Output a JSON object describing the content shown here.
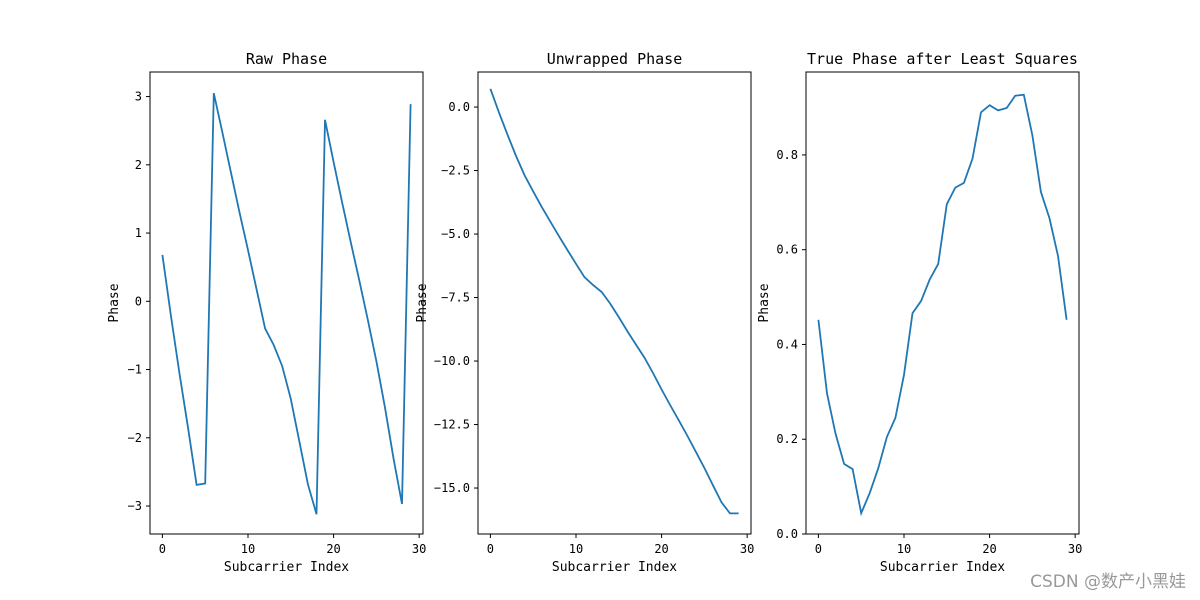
{
  "colors": {
    "line": "#1f77b4",
    "axes": "#000000",
    "watermark": "#999999"
  },
  "watermark": "CSDN @数产小黑娃",
  "chart_data": [
    {
      "type": "line",
      "title": "Raw Phase",
      "xlabel": "Subcarrier Index",
      "ylabel": "Phase",
      "xlim": [
        -1.45,
        30.45
      ],
      "ylim": [
        -3.41,
        3.36
      ],
      "xticks": [
        0,
        10,
        20,
        30
      ],
      "xtick_labels": [
        "0",
        "10",
        "20",
        "30"
      ],
      "yticks": [
        -3,
        -2,
        -1,
        0,
        1,
        2,
        3
      ],
      "ytick_labels": [
        "−3",
        "−2",
        "−1",
        "0",
        "1",
        "2",
        "3"
      ],
      "x": [
        0,
        1,
        2,
        3,
        4,
        5,
        6,
        7,
        8,
        9,
        10,
        11,
        12,
        13,
        14,
        15,
        16,
        17,
        18,
        19,
        20,
        21,
        22,
        23,
        24,
        25,
        26,
        27,
        28,
        29
      ],
      "y": [
        0.68,
        -0.22,
        -1.06,
        -1.86,
        -2.69,
        -2.67,
        3.05,
        2.48,
        1.89,
        1.31,
        0.75,
        0.18,
        -0.4,
        -0.64,
        -0.95,
        -1.43,
        -2.05,
        -2.68,
        -3.12,
        2.66,
        2.04,
        1.45,
        0.87,
        0.31,
        -0.27,
        -0.88,
        -1.55,
        -2.3,
        -2.97,
        2.89
      ]
    },
    {
      "type": "line",
      "title": "Unwrapped Phase",
      "xlabel": "Subcarrier Index",
      "ylabel": "Phase",
      "xlim": [
        -1.45,
        30.45
      ],
      "ylim": [
        -16.81,
        1.38
      ],
      "xticks": [
        0,
        10,
        20,
        30
      ],
      "xtick_labels": [
        "0",
        "10",
        "20",
        "30"
      ],
      "yticks": [
        0.0,
        -2.5,
        -5.0,
        -7.5,
        -10.0,
        -12.5,
        -15.0
      ],
      "ytick_labels": [
        "0.0",
        "−2.5",
        "−5.0",
        "−7.5",
        "−10.0",
        "−12.5",
        "−15.0"
      ],
      "x": [
        0,
        1,
        2,
        3,
        4,
        5,
        6,
        7,
        8,
        9,
        10,
        11,
        12,
        13,
        14,
        15,
        16,
        17,
        18,
        19,
        20,
        21,
        22,
        23,
        24,
        25,
        26,
        27,
        28,
        29
      ],
      "y": [
        0.72,
        -0.22,
        -1.09,
        -1.93,
        -2.69,
        -3.32,
        -3.94,
        -4.51,
        -5.08,
        -5.63,
        -6.17,
        -6.7,
        -7.01,
        -7.28,
        -7.74,
        -8.27,
        -8.82,
        -9.35,
        -9.87,
        -10.47,
        -11.12,
        -11.73,
        -12.33,
        -12.93,
        -13.57,
        -14.21,
        -14.89,
        -15.56,
        -16.0,
        -16.0
      ]
    },
    {
      "type": "line",
      "title": "True Phase after Least Squares",
      "xlabel": "Subcarrier Index",
      "ylabel": "Phase",
      "xlim": [
        -1.45,
        30.45
      ],
      "ylim": [
        0.0,
        0.975
      ],
      "xticks": [
        0,
        10,
        20,
        30
      ],
      "xtick_labels": [
        "0",
        "10",
        "20",
        "30"
      ],
      "yticks": [
        0.0,
        0.2,
        0.4,
        0.6,
        0.8
      ],
      "ytick_labels": [
        "0.0",
        "0.2",
        "0.4",
        "0.6",
        "0.8"
      ],
      "x": [
        0,
        1,
        2,
        3,
        4,
        5,
        6,
        7,
        8,
        9,
        10,
        11,
        12,
        13,
        14,
        15,
        16,
        17,
        18,
        19,
        20,
        21,
        22,
        23,
        24,
        25,
        26,
        27,
        28,
        29
      ],
      "y": [
        0.452,
        0.297,
        0.212,
        0.148,
        0.137,
        0.044,
        0.087,
        0.139,
        0.205,
        0.245,
        0.336,
        0.466,
        0.492,
        0.537,
        0.57,
        0.696,
        0.731,
        0.741,
        0.792,
        0.89,
        0.905,
        0.894,
        0.899,
        0.925,
        0.927,
        0.841,
        0.722,
        0.666,
        0.587,
        0.452
      ]
    }
  ]
}
